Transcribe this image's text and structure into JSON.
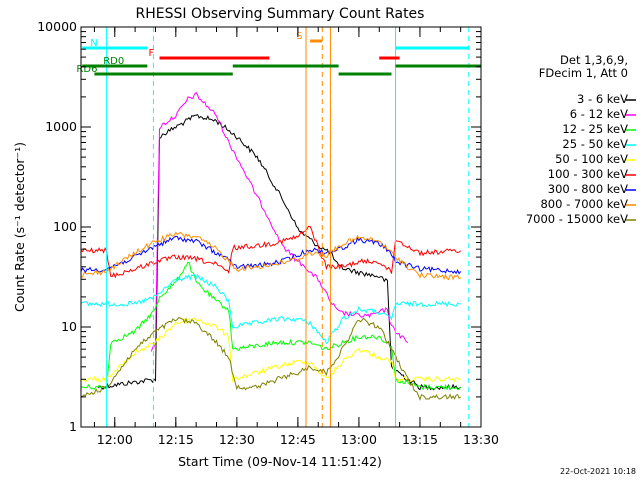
{
  "chart_data": {
    "type": "line",
    "title": "RHESSI Observing Summary Count Rates",
    "xlabel": "Start Time (09-Nov-14 11:51:42)",
    "ylabel": "Count Rate (s⁻¹ detector⁻¹)",
    "y_scale": "log",
    "xlim": [
      "11:51:42",
      "13:30:00"
    ],
    "ylim": [
      1,
      10000
    ],
    "x_ticks": [
      "12:00",
      "12:15",
      "12:30",
      "12:45",
      "13:00",
      "13:15",
      "13:30"
    ],
    "y_ticks": [
      "1",
      "10",
      "100",
      "1000",
      "10000"
    ],
    "grid": false,
    "legend": {
      "placement": "right",
      "header": [
        "Det 1,3,6,9,",
        "FDecim 1, Att 0"
      ],
      "entries": [
        "3 - 6 keV",
        "6 - 12 keV",
        "12 - 25 keV",
        "25 - 50 keV",
        "50 - 100 keV",
        "100 - 300 keV",
        "300 - 800 keV",
        "800 - 7000 keV",
        "7000 - 15000 keV"
      ]
    },
    "series": [
      {
        "name": "3 - 6 keV",
        "color": "#000000",
        "x": [
          "11:56",
          "12:10",
          "12:11",
          "12:15",
          "12:20",
          "12:25",
          "12:30",
          "12:35",
          "12:40",
          "12:43",
          "12:45",
          "12:48",
          "12:50",
          "12:53",
          "12:55",
          "13:00",
          "13:05",
          "13:07",
          "13:08",
          "13:12",
          "13:15",
          "13:25"
        ],
        "y": [
          2.5,
          3,
          800,
          1000,
          1300,
          1150,
          800,
          500,
          230,
          140,
          95,
          75,
          65,
          55,
          40,
          35,
          32,
          28,
          4,
          3,
          2.5,
          2.5
        ]
      },
      {
        "name": "6 - 12 keV",
        "color": "#ff00ff",
        "x": [
          "12:09",
          "12:10",
          "12:11",
          "12:15",
          "12:18",
          "12:20",
          "12:25",
          "12:28",
          "12:30",
          "12:35",
          "12:38",
          "12:40",
          "12:42",
          "12:45",
          "12:47",
          "12:48",
          "12:50",
          "12:53",
          "12:55",
          "13:00",
          "13:03",
          "13:05",
          "13:07",
          "13:08",
          "13:12"
        ],
        "y": [
          6,
          7,
          1000,
          1300,
          1900,
          2100,
          1300,
          700,
          500,
          200,
          120,
          80,
          60,
          45,
          40,
          35,
          30,
          18,
          14,
          13,
          13,
          14,
          15,
          10,
          7
        ]
      },
      {
        "name": "12 - 25 keV",
        "color": "#00ff00",
        "x": [
          "11:51:42",
          "11:58",
          "11:59",
          "12:05",
          "12:10",
          "12:11",
          "12:15",
          "12:18",
          "12:20",
          "12:25",
          "12:28",
          "12:29",
          "12:35",
          "12:40",
          "12:45",
          "12:48",
          "12:52",
          "12:56",
          "13:00",
          "13:05",
          "13:08",
          "13:09",
          "13:15",
          "13:25"
        ],
        "y": [
          2.5,
          2.5,
          7,
          9,
          15,
          20,
          28,
          45,
          28,
          18,
          15,
          6,
          6.5,
          7,
          7,
          7,
          6,
          7,
          8,
          8,
          6.5,
          3,
          2.5,
          2.5
        ]
      },
      {
        "name": "25 - 50 keV",
        "color": "#00ffff",
        "x": [
          "11:51:42",
          "11:58",
          "12:05",
          "12:10",
          "12:15",
          "12:20",
          "12:25",
          "12:28",
          "12:29",
          "12:35",
          "12:40",
          "12:45",
          "12:48",
          "12:52",
          "12:56",
          "13:00",
          "13:05",
          "13:08",
          "13:09",
          "13:15",
          "13:25"
        ],
        "y": [
          17,
          17,
          17,
          20,
          30,
          32,
          25,
          18,
          10,
          11,
          12,
          12,
          11,
          7,
          12,
          15,
          14,
          12,
          17,
          17,
          17
        ]
      },
      {
        "name": "50 - 100 keV",
        "color": "#ffff00",
        "x": [
          "11:51:42",
          "11:58",
          "12:05",
          "12:10",
          "12:15",
          "12:20",
          "12:25",
          "12:28",
          "12:29",
          "12:35",
          "12:40",
          "12:45",
          "12:48",
          "12:52",
          "12:56",
          "13:00",
          "13:05",
          "13:08",
          "13:09",
          "13:15",
          "13:25"
        ],
        "y": [
          3,
          3,
          5.5,
          7,
          11,
          12,
          10,
          8,
          3,
          3.5,
          4,
          4.5,
          4.5,
          3,
          4.5,
          6,
          5,
          4.5,
          3,
          3,
          3
        ]
      },
      {
        "name": "100 - 300 keV",
        "color": "#ff0000",
        "x": [
          "11:51:42",
          "11:58",
          "11:59",
          "12:05",
          "12:10",
          "12:15",
          "12:20",
          "12:25",
          "12:28",
          "12:29",
          "12:35",
          "12:40",
          "12:45",
          "12:48",
          "12:52",
          "12:56",
          "13:00",
          "13:05",
          "13:08",
          "13:09",
          "13:15",
          "13:25"
        ],
        "y": [
          58,
          58,
          32,
          38,
          45,
          50,
          48,
          42,
          35,
          62,
          65,
          70,
          80,
          100,
          40,
          40,
          45,
          45,
          35,
          75,
          55,
          58
        ]
      },
      {
        "name": "300 - 800 keV",
        "color": "#0000ff",
        "x": [
          "11:51:42",
          "11:58",
          "12:05",
          "12:10",
          "12:15",
          "12:20",
          "12:25",
          "12:28",
          "12:29",
          "12:35",
          "12:40",
          "12:45",
          "12:48",
          "12:52",
          "12:56",
          "13:00",
          "13:05",
          "13:08",
          "13:09",
          "13:15",
          "13:25"
        ],
        "y": [
          37,
          38,
          50,
          65,
          78,
          72,
          55,
          48,
          40,
          41,
          44,
          52,
          60,
          55,
          62,
          75,
          68,
          55,
          45,
          38,
          36
        ]
      },
      {
        "name": "800 - 7000 keV",
        "color": "#ff8c00",
        "x": [
          "11:51:42",
          "11:58",
          "12:05",
          "12:10",
          "12:15",
          "12:20",
          "12:25",
          "12:30",
          "12:35",
          "12:40",
          "12:45",
          "12:48",
          "12:52",
          "12:56",
          "13:00",
          "13:05",
          "13:08",
          "13:12",
          "13:15",
          "13:25"
        ],
        "y": [
          33,
          36,
          55,
          72,
          85,
          80,
          60,
          38,
          40,
          43,
          48,
          55,
          52,
          68,
          78,
          72,
          55,
          40,
          33,
          31
        ]
      },
      {
        "name": "7000 - 15000 keV",
        "color": "#808000",
        "x": [
          "11:51:42",
          "11:58",
          "12:05",
          "12:10",
          "12:15",
          "12:20",
          "12:25",
          "12:28",
          "12:30",
          "12:35",
          "12:40",
          "12:45",
          "12:48",
          "12:52",
          "12:56",
          "13:00",
          "13:05",
          "13:08",
          "13:12",
          "13:15",
          "13:25"
        ],
        "y": [
          2,
          2.5,
          6,
          9,
          12,
          11,
          7,
          5,
          2.5,
          2.5,
          3,
          3.5,
          4,
          3.5,
          6,
          12,
          10,
          6,
          3,
          2,
          2
        ]
      }
    ],
    "event_lines": [
      {
        "time": "11:51:42",
        "color": "#00ffff",
        "style": "solid"
      },
      {
        "time": "11:58:00",
        "color": "#00ffff",
        "style": "solid"
      },
      {
        "time": "12:09:30",
        "color": "#00ffff",
        "style": "dashed"
      },
      {
        "time": "12:47:00",
        "color": "#ff8c00",
        "style": "solid"
      },
      {
        "time": "12:51:00",
        "color": "#ff8c00",
        "style": "dashed"
      },
      {
        "time": "12:53:00",
        "color": "#ff8c00",
        "style": "solid"
      },
      {
        "time": "13:09:00",
        "color": "#00ffff",
        "style": "solid"
      },
      {
        "time": "13:27:00",
        "color": "#00ffff",
        "style": "dashed"
      }
    ],
    "flag_bars": [
      {
        "label": "N",
        "color": "#00ffff",
        "segments": [
          [
            "11:52",
            "12:08"
          ],
          [
            "13:09",
            "13:27"
          ]
        ]
      },
      {
        "label": "S",
        "color": "#ff8c00",
        "segments": [
          [
            "12:48",
            "12:51"
          ]
        ]
      },
      {
        "label": "F",
        "color": "#ff0000",
        "segments": [
          [
            "12:11",
            "12:38"
          ],
          [
            "13:05",
            "13:10"
          ]
        ]
      },
      {
        "label": "RD0",
        "color": "#008000",
        "segments": [
          [
            "11:52",
            "12:08"
          ],
          [
            "12:29",
            "12:55"
          ],
          [
            "13:09",
            "13:30"
          ]
        ]
      },
      {
        "label": "RD6",
        "color": "#008000",
        "segments": [
          [
            "11:55",
            "12:29"
          ],
          [
            "12:55",
            "13:08"
          ]
        ]
      }
    ]
  },
  "footer": {
    "date_stamp": "22-Oct-2021 10:18"
  }
}
